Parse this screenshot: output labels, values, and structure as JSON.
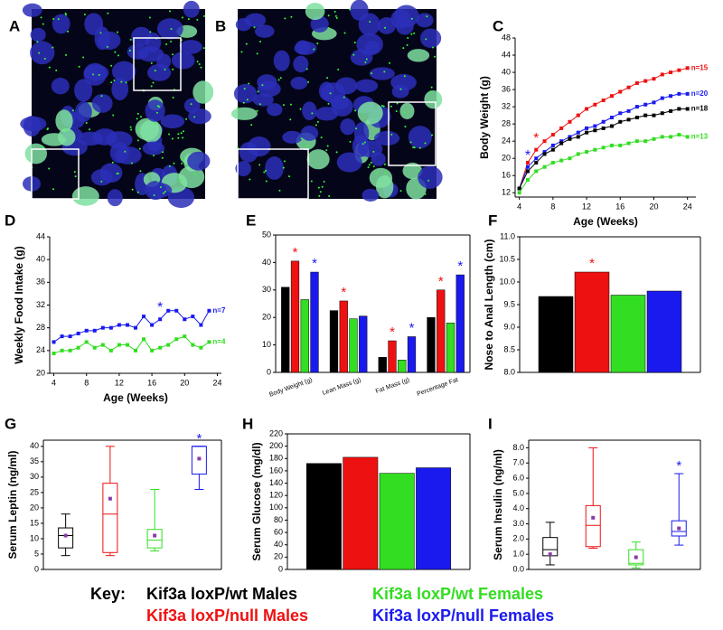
{
  "images": [
    {
      "panel": "A"
    },
    {
      "panel": "B"
    }
  ],
  "key": {
    "label": "Key:",
    "items": [
      {
        "name": "Kif3a loxP/wt Males",
        "color": "#000000"
      },
      {
        "name": "Kif3a loxP/null Males",
        "color": "#ee1111"
      },
      {
        "name": "Kif3a loxP/wt Females",
        "color": "#33dd22"
      },
      {
        "name": "Kif3a loxP/null Females",
        "color": "#1a1aee"
      }
    ]
  },
  "chart_data": [
    {
      "type": "line",
      "panel": "C",
      "y_label": "Body Weight (g)",
      "x_label": "Age (Weeks)",
      "x": [
        4,
        5,
        6,
        7,
        8,
        9,
        10,
        11,
        12,
        13,
        14,
        15,
        16,
        17,
        18,
        19,
        20,
        21,
        22,
        23,
        24
      ],
      "xlim": [
        3.5,
        25
      ],
      "xticks": [
        4,
        8,
        12,
        16,
        20,
        24
      ],
      "ylim": [
        11,
        48
      ],
      "yticks": [
        12,
        16,
        20,
        24,
        28,
        32,
        36,
        40,
        44,
        48
      ],
      "series": [
        {
          "name": "n=15",
          "color": "#ee1111",
          "values": [
            13,
            19,
            22,
            24,
            25.5,
            27,
            28.5,
            30,
            31.5,
            32.5,
            33.5,
            34.5,
            35.5,
            36.5,
            37.5,
            38,
            38.5,
            39.5,
            40,
            40.5,
            41
          ]
        },
        {
          "name": "n=20",
          "color": "#1a1aee",
          "values": [
            13,
            18,
            20,
            21.5,
            23,
            24,
            25,
            26,
            27,
            27.5,
            28.5,
            29.5,
            30.5,
            31,
            32,
            32.5,
            33,
            34,
            34.5,
            35,
            35
          ]
        },
        {
          "name": "n=18",
          "color": "#000000",
          "values": [
            13,
            17,
            19,
            21,
            22,
            23.5,
            24.5,
            25,
            26,
            26.5,
            27,
            27.5,
            28.5,
            29,
            29.5,
            30,
            30,
            30.5,
            31,
            31.5,
            31.5
          ]
        },
        {
          "name": "n=13",
          "color": "#33dd22",
          "values": [
            12,
            15,
            17,
            18,
            19,
            19.5,
            20,
            21,
            21.5,
            22,
            22.5,
            23,
            23,
            23.5,
            24,
            24,
            24.5,
            25,
            25,
            25.5,
            25
          ]
        }
      ],
      "stars": [
        {
          "text": "*",
          "color": "#1a1aee",
          "x": 5,
          "y": 20.5
        },
        {
          "text": "*",
          "color": "#ee1111",
          "x": 6,
          "y": 24.5
        }
      ]
    },
    {
      "type": "line",
      "panel": "D",
      "y_label": "Weekly Food Intake (g)",
      "x_label": "Age (Weeks)",
      "x": [
        4,
        5,
        6,
        7,
        8,
        9,
        10,
        11,
        12,
        13,
        14,
        15,
        16,
        17,
        18,
        19,
        20,
        21,
        22,
        23
      ],
      "xlim": [
        3.5,
        24.5
      ],
      "xticks": [
        4,
        8,
        12,
        16,
        20,
        24
      ],
      "ylim": [
        20,
        44
      ],
      "yticks": [
        20,
        24,
        28,
        32,
        36,
        40,
        44
      ],
      "series": [
        {
          "name": "n=7",
          "color": "#1a1aee",
          "values": [
            25.5,
            26.5,
            26.5,
            27,
            27.5,
            27.5,
            28,
            28,
            28.5,
            28.5,
            28,
            30,
            28.5,
            29.5,
            31,
            31,
            29.5,
            30,
            28.5,
            31
          ]
        },
        {
          "name": "n=4",
          "color": "#33dd22",
          "values": [
            23.5,
            24,
            24,
            24.5,
            25.5,
            24.5,
            25,
            24,
            25,
            25,
            24,
            26,
            24,
            24.5,
            25,
            26,
            26.5,
            25,
            24.5,
            25.5
          ]
        }
      ],
      "stars": [
        {
          "text": "*",
          "color": "#1a1aee",
          "x": 17,
          "y": 31.5
        }
      ]
    },
    {
      "type": "bar",
      "panel": "E",
      "categories": [
        "Body Weight (g)",
        "Lean Mass (g)",
        "Fat Mass (g)",
        "Percentage Fat"
      ],
      "ylim": [
        0,
        50
      ],
      "yticks": [
        0,
        10,
        20,
        30,
        40,
        50
      ],
      "series": [
        {
          "color": "#000000",
          "values": [
            31,
            22.5,
            5.5,
            20
          ]
        },
        {
          "color": "#ee1111",
          "values": [
            40.5,
            26,
            11.5,
            30
          ]
        },
        {
          "color": "#33dd22",
          "values": [
            26.5,
            19.5,
            4.5,
            18
          ]
        },
        {
          "color": "#1a1aee",
          "values": [
            36.5,
            20.5,
            13,
            35.5
          ]
        }
      ],
      "stars": [
        {
          "text": "*",
          "series": 1,
          "category": 0
        },
        {
          "text": "*",
          "series": 1,
          "category": 1
        },
        {
          "text": "*",
          "series": 1,
          "category": 2
        },
        {
          "text": "*",
          "series": 1,
          "category": 3
        },
        {
          "text": "*",
          "series": 3,
          "category": 0
        },
        {
          "text": "*",
          "series": 3,
          "category": 2
        },
        {
          "text": "*",
          "series": 3,
          "category": 3
        }
      ]
    },
    {
      "type": "bar",
      "panel": "F",
      "y_label": "Nose to Anal Length (cm)",
      "ylim": [
        8,
        11
      ],
      "yticks": [
        {
          "value": 8,
          "label": "8.0"
        },
        8.5,
        {
          "value": 9,
          "label": "9.0"
        },
        9.5,
        {
          "value": 10,
          "label": "10.0"
        },
        10.5,
        {
          "value": 11,
          "label": "11.0"
        }
      ],
      "series": [
        {
          "color": "#000000",
          "values": [
            9.68
          ]
        },
        {
          "color": "#ee1111",
          "values": [
            10.22
          ]
        },
        {
          "color": "#33dd22",
          "values": [
            9.71
          ]
        },
        {
          "color": "#1a1aee",
          "values": [
            9.8
          ]
        }
      ],
      "stars": [
        {
          "text": "*",
          "series": 1,
          "category": 0
        }
      ]
    },
    {
      "type": "box",
      "panel": "G",
      "y_label": "Serum Leptin (ng/ml)",
      "ylim": [
        0,
        42
      ],
      "yticks": [
        0,
        5,
        10,
        15,
        20,
        25,
        30,
        35,
        40
      ],
      "series": [
        {
          "color": "#000000",
          "min": 4.5,
          "q1": 7,
          "median": 11,
          "q3": 13.5,
          "max": 18,
          "mean": 11
        },
        {
          "color": "#ee1111",
          "min": 4.5,
          "q1": 5.5,
          "median": 18,
          "q3": 28,
          "max": 40,
          "mean": 23
        },
        {
          "color": "#33dd22",
          "min": 6,
          "q1": 7,
          "median": 9.5,
          "q3": 13,
          "max": 26,
          "mean": 11
        },
        {
          "color": "#1a1aee",
          "min": 26,
          "q1": 31,
          "median": 40,
          "q3": 40,
          "max": 40,
          "mean": 36
        }
      ],
      "stars": [
        {
          "text": "*",
          "series": 3
        }
      ]
    },
    {
      "type": "bar",
      "panel": "H",
      "y_label": "Serum Glucose (mg/dl)",
      "ylim": [
        0,
        220
      ],
      "yticks": [
        0,
        20,
        40,
        60,
        80,
        100,
        120,
        140,
        160,
        180,
        200,
        220
      ],
      "series": [
        {
          "color": "#000000",
          "values": [
            172
          ]
        },
        {
          "color": "#ee1111",
          "values": [
            182
          ]
        },
        {
          "color": "#33dd22",
          "values": [
            156
          ]
        },
        {
          "color": "#1a1aee",
          "values": [
            165
          ]
        }
      ]
    },
    {
      "type": "box",
      "panel": "I",
      "y_label": "Serum Insulin (ng/ml)",
      "ylim": [
        0,
        8.5
      ],
      "yticks": [
        {
          "value": 0,
          "label": "0.0"
        },
        {
          "value": 1,
          "label": "1.0"
        },
        {
          "value": 2,
          "label": "2.0"
        },
        {
          "value": 3,
          "label": "3.0"
        },
        {
          "value": 4,
          "label": "4.0"
        },
        {
          "value": 5,
          "label": "5.0"
        },
        {
          "value": 6,
          "label": "6.0"
        },
        {
          "value": 7,
          "label": "7.0"
        },
        {
          "value": 8,
          "label": "8.0"
        }
      ],
      "series": [
        {
          "color": "#000000",
          "min": 0.3,
          "q1": 0.9,
          "median": 1.3,
          "q3": 2.1,
          "max": 3.1,
          "mean": 1.0
        },
        {
          "color": "#ee1111",
          "min": 1.4,
          "q1": 1.5,
          "median": 2.9,
          "q3": 4.2,
          "max": 8.0,
          "mean": 3.4
        },
        {
          "color": "#33dd22",
          "min": 0.1,
          "q1": 0.3,
          "median": 0.4,
          "q3": 1.3,
          "max": 1.8,
          "mean": 0.8
        },
        {
          "color": "#1a1aee",
          "min": 1.6,
          "q1": 2.2,
          "median": 2.5,
          "q3": 3.2,
          "max": 6.3,
          "mean": 2.7
        }
      ],
      "stars": [
        {
          "text": "*",
          "series": 3
        }
      ]
    }
  ]
}
